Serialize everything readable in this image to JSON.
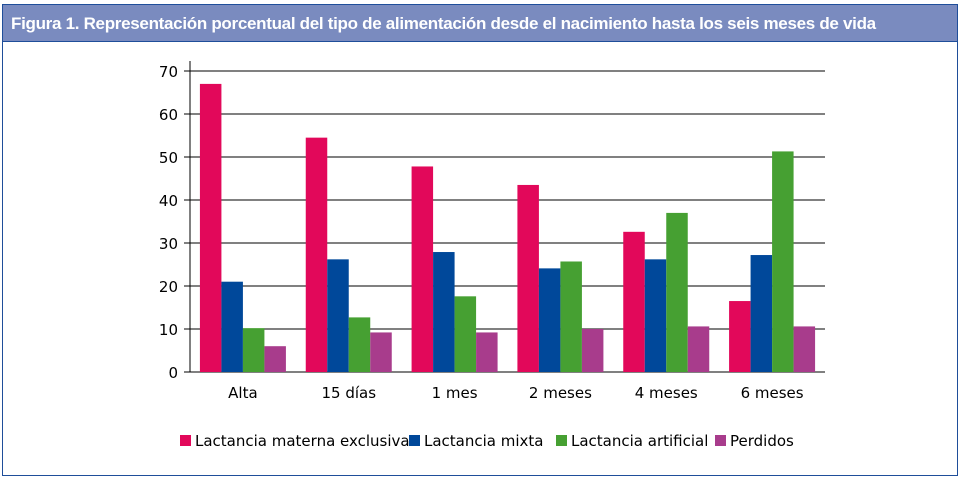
{
  "figure_title": "Figura 1.  Representación porcentual del tipo de alimentación desde el nacimiento hasta los seis meses de vida",
  "chart_data": {
    "type": "bar",
    "title": "",
    "xlabel": "",
    "ylabel": "",
    "ylim": [
      0,
      70
    ],
    "yticks": [
      0,
      10,
      20,
      30,
      40,
      50,
      60,
      70
    ],
    "grid": true,
    "legend_position": "bottom",
    "categories": [
      "Alta",
      "15 días",
      "1 mes",
      "2 meses",
      "4 meses",
      "6 meses"
    ],
    "series": [
      {
        "name": "Lactancia materna exclusiva",
        "color": "#e2085a",
        "values": [
          67,
          54.5,
          47.8,
          43.5,
          32.6,
          16.5
        ]
      },
      {
        "name": "Lactancia mixta",
        "color": "#00489a",
        "values": [
          21,
          26.2,
          27.9,
          24.1,
          26.2,
          27.2
        ]
      },
      {
        "name": "Lactancia artificial",
        "color": "#46a032",
        "values": [
          10.2,
          12.7,
          17.6,
          25.7,
          37,
          51.3
        ]
      },
      {
        "name": "Perdidos",
        "color": "#a83c8c",
        "values": [
          6,
          9.2,
          9.2,
          10,
          10.6,
          10.6
        ]
      }
    ]
  }
}
